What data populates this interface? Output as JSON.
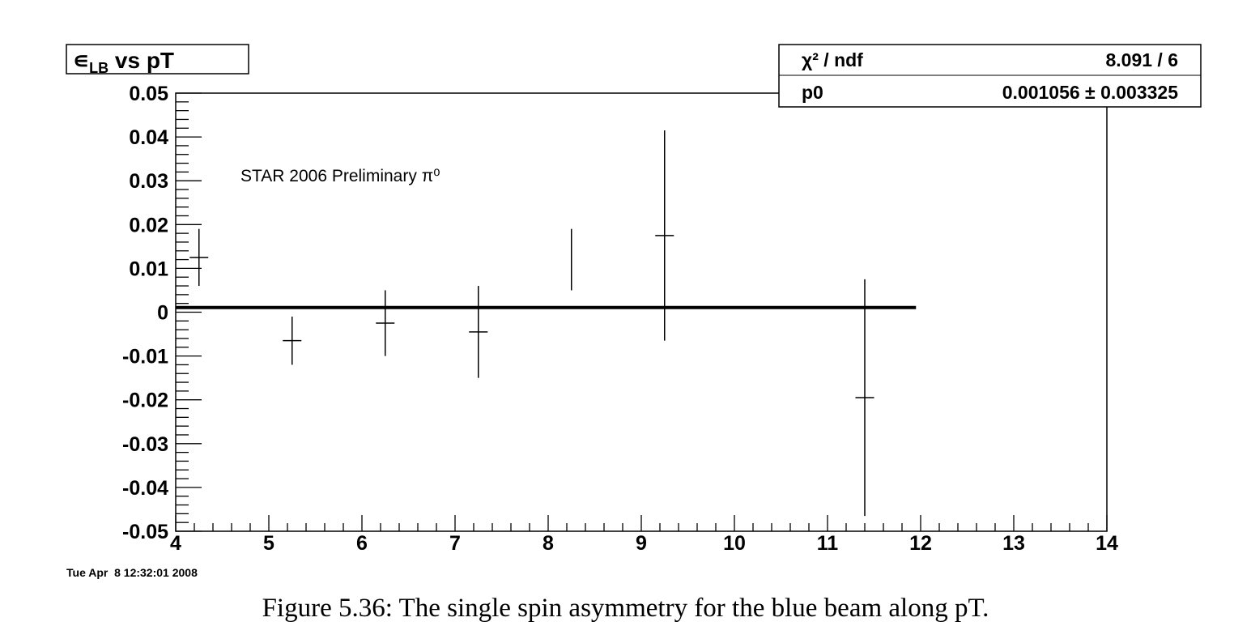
{
  "chart_data": {
    "type": "scatter",
    "title_symbol": "∊",
    "title_subscript": "LB",
    "title_rest": " vs pT",
    "xlim": [
      4,
      14
    ],
    "ylim": [
      -0.05,
      0.05
    ],
    "x_ticks": [
      "4",
      "5",
      "6",
      "7",
      "8",
      "9",
      "10",
      "11",
      "12",
      "13",
      "14"
    ],
    "y_ticks": [
      "0.05",
      "0.04",
      "0.03",
      "0.02",
      "0.01",
      "0",
      "-0.01",
      "-0.02",
      "-0.03",
      "-0.04",
      "-0.05"
    ],
    "points": [
      {
        "x": 4.25,
        "y": 0.0125,
        "y_err": 0.0065,
        "x_err": 0.1
      },
      {
        "x": 5.25,
        "y": -0.0065,
        "y_err": 0.0055,
        "x_err": 0.1
      },
      {
        "x": 6.25,
        "y": -0.0025,
        "y_err": 0.0075,
        "x_err": 0.1
      },
      {
        "x": 7.25,
        "y": -0.0045,
        "y_err": 0.0105,
        "x_err": 0.1
      },
      {
        "x": 8.25,
        "y": 0.012,
        "y_err": 0.007,
        "x_err": 0.0
      },
      {
        "x": 9.25,
        "y": 0.0175,
        "y_err": 0.024,
        "x_err": 0.1
      },
      {
        "x": 11.4,
        "y": -0.0195,
        "y_err": 0.027,
        "x_err": 0.1
      }
    ],
    "fit": {
      "p0": 0.001056,
      "x_range": [
        4,
        11.95
      ]
    },
    "stats": {
      "chi2_label": "χ² / ndf",
      "chi2_value": "8.091 / 6",
      "p0_label": "p0",
      "p0_value": "0.001056 ± 0.003325"
    },
    "annotation": "STAR 2006 Preliminary π⁰",
    "grid": false
  },
  "timestamp": "Tue Apr  8 12:32:01 2008",
  "caption": "Figure 5.36: The single spin asymmetry for the blue beam along pT."
}
